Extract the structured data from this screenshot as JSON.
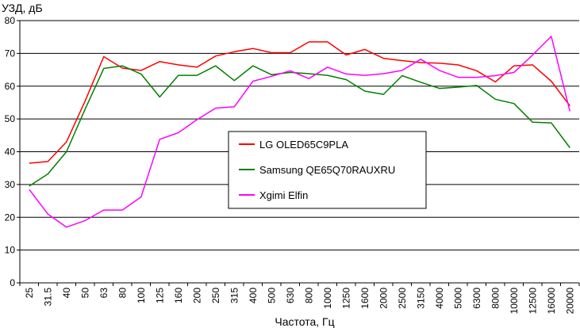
{
  "chart_data": {
    "type": "line",
    "ylabel": "УЗД, дБ",
    "xlabel": "Частота, Гц",
    "ylim": [
      0,
      80
    ],
    "yticks": [
      0,
      10,
      20,
      30,
      40,
      50,
      60,
      70,
      80
    ],
    "grid": "horizontal",
    "legend_position": "center",
    "categories": [
      "25",
      "31.5",
      "40",
      "50",
      "63",
      "80",
      "100",
      "125",
      "160",
      "200",
      "250",
      "315",
      "400",
      "500",
      "630",
      "800",
      "1000",
      "1250",
      "1600",
      "2000",
      "2500",
      "3150",
      "4000",
      "5000",
      "6300",
      "8000",
      "10000",
      "12500",
      "16000",
      "20000"
    ],
    "series": [
      {
        "name": "LG OLED65C9PLA",
        "color": "#ff0000",
        "values": [
          36.5,
          37,
          43,
          55.5,
          69,
          65.5,
          64.8,
          67.5,
          66.5,
          65.8,
          69.2,
          70.5,
          71.5,
          70.2,
          70.2,
          73.5,
          73.5,
          69.5,
          71.2,
          68.5,
          67.8,
          67.2,
          67,
          66.5,
          64.7,
          61.3,
          66.2,
          66.5,
          61.5,
          54
        ]
      },
      {
        "name": "Samsung QE65Q70RAUXRU",
        "color": "#008000",
        "values": [
          29.5,
          33.2,
          40,
          53,
          65.4,
          66.2,
          63.7,
          56.7,
          63.3,
          63.3,
          66.2,
          61.7,
          66.2,
          63.5,
          64.2,
          63.8,
          63.3,
          62,
          58.5,
          57.5,
          63.2,
          61.2,
          59.3,
          59.7,
          60.2,
          56,
          54.7,
          49,
          48.8,
          41.2
        ]
      },
      {
        "name": "Xgimi Elfin",
        "color": "#ff00ff",
        "values": [
          28.5,
          21,
          17,
          19,
          22.2,
          22.2,
          26.2,
          43.8,
          45.8,
          49.8,
          53.3,
          53.7,
          61.5,
          63,
          64.7,
          62.3,
          65.8,
          63.7,
          63.3,
          63.8,
          64.8,
          68.2,
          64.8,
          62.7,
          62.7,
          63.2,
          64.2,
          69.5,
          75.2,
          52.3
        ]
      }
    ]
  }
}
